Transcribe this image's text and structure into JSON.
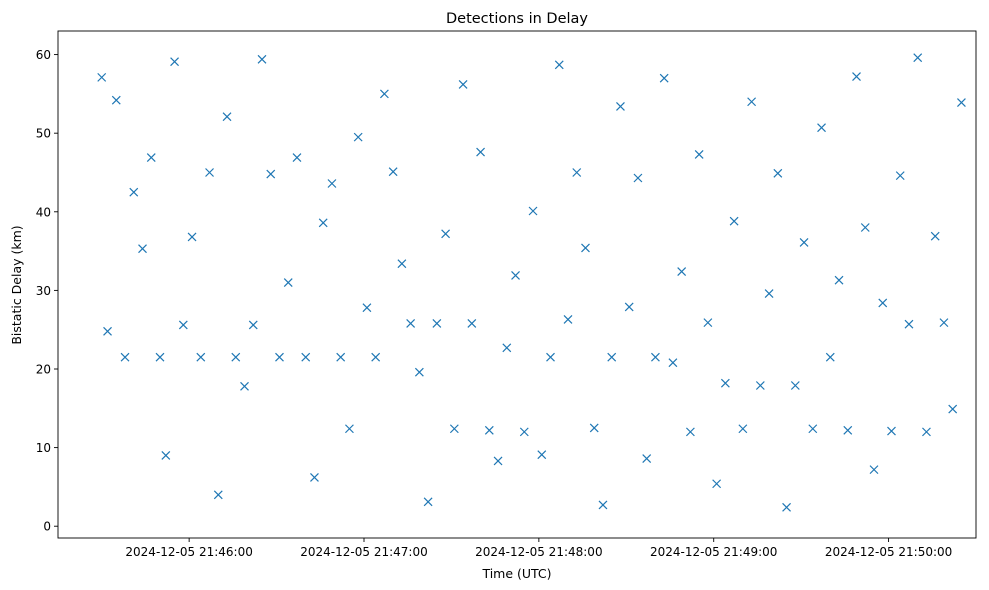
{
  "chart_data": {
    "type": "scatter",
    "title": "Detections in Delay",
    "xlabel": "Time (UTC)",
    "ylabel": "Bistatic Delay (km)",
    "x_ticks": [
      "2024-12-05 21:46:00",
      "2024-12-05 21:47:00",
      "2024-12-05 21:48:00",
      "2024-12-05 21:49:00",
      "2024-12-05 21:50:00"
    ],
    "y_ticks": [
      "0",
      "10",
      "20",
      "30",
      "40",
      "50",
      "60"
    ],
    "xlim": [
      "2024-12-05 21:45:15",
      "2024-12-05 21:50:30"
    ],
    "ylim": [
      -1.5,
      63
    ],
    "marker": "x",
    "grid": false,
    "color": "#1f77b4",
    "series": [
      {
        "points": [
          [
            "2024-12-05 21:45:30",
            57.1
          ],
          [
            "2024-12-05 21:45:32",
            24.8
          ],
          [
            "2024-12-05 21:45:35",
            54.2
          ],
          [
            "2024-12-05 21:45:38",
            21.5
          ],
          [
            "2024-12-05 21:45:41",
            42.5
          ],
          [
            "2024-12-05 21:45:44",
            35.3
          ],
          [
            "2024-12-05 21:45:47",
            46.9
          ],
          [
            "2024-12-05 21:45:50",
            21.5
          ],
          [
            "2024-12-05 21:45:52",
            9.0
          ],
          [
            "2024-12-05 21:45:55",
            59.1
          ],
          [
            "2024-12-05 21:45:58",
            25.6
          ],
          [
            "2024-12-05 21:46:01",
            36.8
          ],
          [
            "2024-12-05 21:46:04",
            21.5
          ],
          [
            "2024-12-05 21:46:07",
            45.0
          ],
          [
            "2024-12-05 21:46:10",
            4.0
          ],
          [
            "2024-12-05 21:46:13",
            52.1
          ],
          [
            "2024-12-05 21:46:16",
            21.5
          ],
          [
            "2024-12-05 21:46:19",
            17.8
          ],
          [
            "2024-12-05 21:46:22",
            25.6
          ],
          [
            "2024-12-05 21:46:25",
            59.4
          ],
          [
            "2024-12-05 21:46:28",
            44.8
          ],
          [
            "2024-12-05 21:46:31",
            21.5
          ],
          [
            "2024-12-05 21:46:34",
            31.0
          ],
          [
            "2024-12-05 21:46:37",
            46.9
          ],
          [
            "2024-12-05 21:46:40",
            21.5
          ],
          [
            "2024-12-05 21:46:43",
            6.2
          ],
          [
            "2024-12-05 21:46:46",
            38.6
          ],
          [
            "2024-12-05 21:46:49",
            43.6
          ],
          [
            "2024-12-05 21:46:52",
            21.5
          ],
          [
            "2024-12-05 21:46:55",
            12.4
          ],
          [
            "2024-12-05 21:46:58",
            49.5
          ],
          [
            "2024-12-05 21:47:01",
            27.8
          ],
          [
            "2024-12-05 21:47:04",
            21.5
          ],
          [
            "2024-12-05 21:47:07",
            55.0
          ],
          [
            "2024-12-05 21:47:10",
            45.1
          ],
          [
            "2024-12-05 21:47:13",
            33.4
          ],
          [
            "2024-12-05 21:47:16",
            25.8
          ],
          [
            "2024-12-05 21:47:19",
            19.6
          ],
          [
            "2024-12-05 21:47:22",
            3.1
          ],
          [
            "2024-12-05 21:47:25",
            25.8
          ],
          [
            "2024-12-05 21:47:28",
            37.2
          ],
          [
            "2024-12-05 21:47:31",
            12.4
          ],
          [
            "2024-12-05 21:47:34",
            56.2
          ],
          [
            "2024-12-05 21:47:37",
            25.8
          ],
          [
            "2024-12-05 21:47:40",
            47.6
          ],
          [
            "2024-12-05 21:47:43",
            12.2
          ],
          [
            "2024-12-05 21:47:46",
            8.3
          ],
          [
            "2024-12-05 21:47:49",
            22.7
          ],
          [
            "2024-12-05 21:47:52",
            31.9
          ],
          [
            "2024-12-05 21:47:55",
            12.0
          ],
          [
            "2024-12-05 21:47:58",
            40.1
          ],
          [
            "2024-12-05 21:48:01",
            9.1
          ],
          [
            "2024-12-05 21:48:04",
            21.5
          ],
          [
            "2024-12-05 21:48:07",
            58.7
          ],
          [
            "2024-12-05 21:48:10",
            26.3
          ],
          [
            "2024-12-05 21:48:13",
            45.0
          ],
          [
            "2024-12-05 21:48:16",
            35.4
          ],
          [
            "2024-12-05 21:48:19",
            12.5
          ],
          [
            "2024-12-05 21:48:22",
            2.7
          ],
          [
            "2024-12-05 21:48:25",
            21.5
          ],
          [
            "2024-12-05 21:48:28",
            53.4
          ],
          [
            "2024-12-05 21:48:31",
            27.9
          ],
          [
            "2024-12-05 21:48:34",
            44.3
          ],
          [
            "2024-12-05 21:48:37",
            8.6
          ],
          [
            "2024-12-05 21:48:40",
            21.5
          ],
          [
            "2024-12-05 21:48:43",
            57.0
          ],
          [
            "2024-12-05 21:48:46",
            20.8
          ],
          [
            "2024-12-05 21:48:49",
            32.4
          ],
          [
            "2024-12-05 21:48:52",
            12.0
          ],
          [
            "2024-12-05 21:48:55",
            47.3
          ],
          [
            "2024-12-05 21:48:58",
            25.9
          ],
          [
            "2024-12-05 21:49:01",
            5.4
          ],
          [
            "2024-12-05 21:49:04",
            18.2
          ],
          [
            "2024-12-05 21:49:07",
            38.8
          ],
          [
            "2024-12-05 21:49:10",
            12.4
          ],
          [
            "2024-12-05 21:49:13",
            54.0
          ],
          [
            "2024-12-05 21:49:16",
            17.9
          ],
          [
            "2024-12-05 21:49:19",
            29.6
          ],
          [
            "2024-12-05 21:49:22",
            44.9
          ],
          [
            "2024-12-05 21:49:25",
            2.4
          ],
          [
            "2024-12-05 21:49:28",
            17.9
          ],
          [
            "2024-12-05 21:49:31",
            36.1
          ],
          [
            "2024-12-05 21:49:34",
            12.4
          ],
          [
            "2024-12-05 21:49:37",
            50.7
          ],
          [
            "2024-12-05 21:49:40",
            21.5
          ],
          [
            "2024-12-05 21:49:43",
            31.3
          ],
          [
            "2024-12-05 21:49:46",
            12.2
          ],
          [
            "2024-12-05 21:49:49",
            57.2
          ],
          [
            "2024-12-05 21:49:52",
            38.0
          ],
          [
            "2024-12-05 21:49:55",
            7.2
          ],
          [
            "2024-12-05 21:49:58",
            28.4
          ],
          [
            "2024-12-05 21:50:01",
            12.1
          ],
          [
            "2024-12-05 21:50:04",
            44.6
          ],
          [
            "2024-12-05 21:50:07",
            25.7
          ],
          [
            "2024-12-05 21:50:10",
            59.6
          ],
          [
            "2024-12-05 21:50:13",
            12.0
          ],
          [
            "2024-12-05 21:50:16",
            36.9
          ],
          [
            "2024-12-05 21:50:19",
            25.9
          ],
          [
            "2024-12-05 21:50:22",
            14.9
          ],
          [
            "2024-12-05 21:50:25",
            53.9
          ]
        ]
      }
    ]
  }
}
